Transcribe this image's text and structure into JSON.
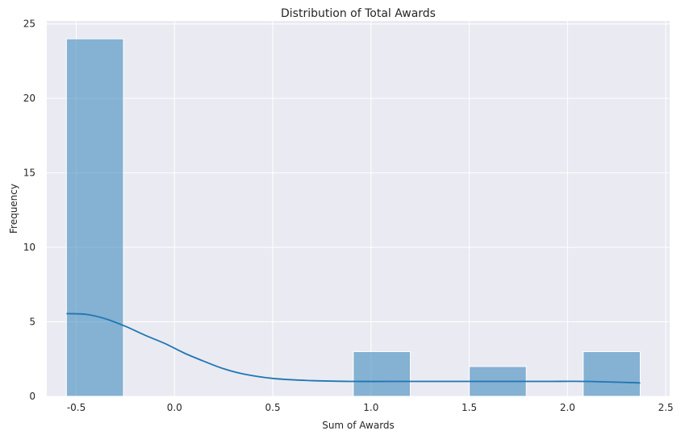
{
  "chart_data": {
    "type": "bar",
    "title": "Distribution of Total Awards",
    "xlabel": "Sum of Awards",
    "ylabel": "Frequency",
    "xlim": [
      -0.65,
      2.52
    ],
    "ylim": [
      0,
      25.2
    ],
    "x_ticks": [
      -0.5,
      0.0,
      0.5,
      1.0,
      1.5,
      2.0,
      2.5
    ],
    "x_tick_labels": [
      "-0.5",
      "0.0",
      "0.5",
      "1.0",
      "1.5",
      "2.0",
      "2.5"
    ],
    "y_ticks": [
      0,
      5,
      10,
      15,
      20,
      25
    ],
    "y_tick_labels": [
      "0",
      "5",
      "10",
      "15",
      "20",
      "25"
    ],
    "grid": true,
    "bins": [
      {
        "x0": -0.55,
        "x1": -0.26,
        "count": 24
      },
      {
        "x0": -0.26,
        "x1": 0.04,
        "count": 0
      },
      {
        "x0": 0.04,
        "x1": 0.33,
        "count": 0
      },
      {
        "x0": 0.33,
        "x1": 0.62,
        "count": 0
      },
      {
        "x0": 0.62,
        "x1": 0.91,
        "count": 0
      },
      {
        "x0": 0.91,
        "x1": 1.2,
        "count": 3
      },
      {
        "x0": 1.2,
        "x1": 1.5,
        "count": 0
      },
      {
        "x0": 1.5,
        "x1": 1.79,
        "count": 2
      },
      {
        "x0": 1.79,
        "x1": 2.08,
        "count": 0
      },
      {
        "x0": 2.08,
        "x1": 2.37,
        "count": 3
      }
    ],
    "kde": {
      "x": [
        -0.55,
        -0.45,
        -0.35,
        -0.25,
        -0.15,
        -0.05,
        0.05,
        0.15,
        0.25,
        0.35,
        0.5,
        0.7,
        0.9,
        1.1,
        1.3,
        1.5,
        1.7,
        1.9,
        2.1,
        2.37
      ],
      "y": [
        5.55,
        5.5,
        5.2,
        4.7,
        4.1,
        3.55,
        2.9,
        2.35,
        1.85,
        1.5,
        1.2,
        1.05,
        1.0,
        1.0,
        1.0,
        1.0,
        1.0,
        1.0,
        1.0,
        0.9
      ]
    },
    "colors": {
      "background": "#eaeaf2",
      "bar": "#1f77b4",
      "line": "#1f77b4",
      "grid": "#ffffff"
    }
  }
}
